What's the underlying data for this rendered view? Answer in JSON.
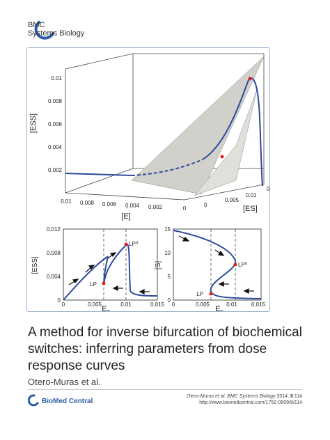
{
  "journal": {
    "line1": "BMC",
    "line2": "Systems Biology"
  },
  "figure": {
    "top": {
      "z_label": "[ESS]",
      "x_label": "[E]",
      "y_label": "[ES]",
      "z_ticks": [
        "0.01",
        "0.008",
        "0.006",
        "0.004",
        "0.002"
      ],
      "x_ticks": [
        "0.01",
        "0.008",
        "0.006",
        "0.004",
        "0.002",
        "0"
      ],
      "y_ticks": [
        "0",
        "0.005",
        "0.01"
      ],
      "corner_zero": "0"
    },
    "bottom_left": {
      "ylabel": "[ESS]",
      "xlabel_main": "E",
      "xlabel_sub": "T",
      "y_ticks": [
        "0.012",
        "0.008",
        "0.004",
        "0"
      ],
      "x_ticks": [
        "0",
        "0.005",
        "0.01",
        "0.015"
      ],
      "lp_label": "LP",
      "lp_u_label": "LP",
      "lp_u_sup": "u"
    },
    "bottom_right": {
      "ylabel": "[S]",
      "xlabel_main": "E",
      "xlabel_sub": "T",
      "y_ticks": [
        "15",
        "10",
        "5",
        "0"
      ],
      "x_ticks": [
        "0",
        "0.005",
        "0.01",
        "0.015"
      ],
      "lp_label": "LP",
      "lp_u_label": "LP",
      "lp_u_sup": "u"
    },
    "curve_color": "#2b4a9b",
    "point_color": "#e02020"
  },
  "chart_data": [
    {
      "type": "line",
      "title": "",
      "xlabel": "E_T",
      "ylabel": "[ESS]",
      "xlim": [
        0,
        0.015
      ],
      "ylim": [
        0,
        0.012
      ],
      "x": [
        0,
        0.004,
        0.0068,
        0.0068,
        0.0085,
        0.011,
        0.011,
        0.012,
        0.015
      ],
      "y": [
        0,
        0.0045,
        0.0025,
        0.0015,
        0.005,
        0.0095,
        0.0095,
        0.001,
        0.0006
      ]
    },
    {
      "type": "line",
      "title": "",
      "xlabel": "E_T",
      "ylabel": "[S]",
      "xlim": [
        0,
        0.015
      ],
      "ylim": [
        0,
        15
      ],
      "x": [
        0,
        0.006,
        0.0095,
        0.0095,
        0.0068,
        0.0068,
        0.01,
        0.015
      ],
      "y": [
        15,
        11.5,
        7,
        6,
        3,
        1.8,
        0.6,
        0.3
      ]
    }
  ],
  "title": "A method for inverse bifurcation of biochemical switches: inferring parameters from dose response curves",
  "authors": "Otero-Muras et al.",
  "publisher": "BioMed Central",
  "citation": {
    "authors": "Otero-Muras et al.",
    "journal": "BMC Systems Biology",
    "year_vol": "2014,",
    "volume": "8",
    "article": ":114",
    "url": "http://www.biomedcentral.com/1752-0509/8/114"
  }
}
